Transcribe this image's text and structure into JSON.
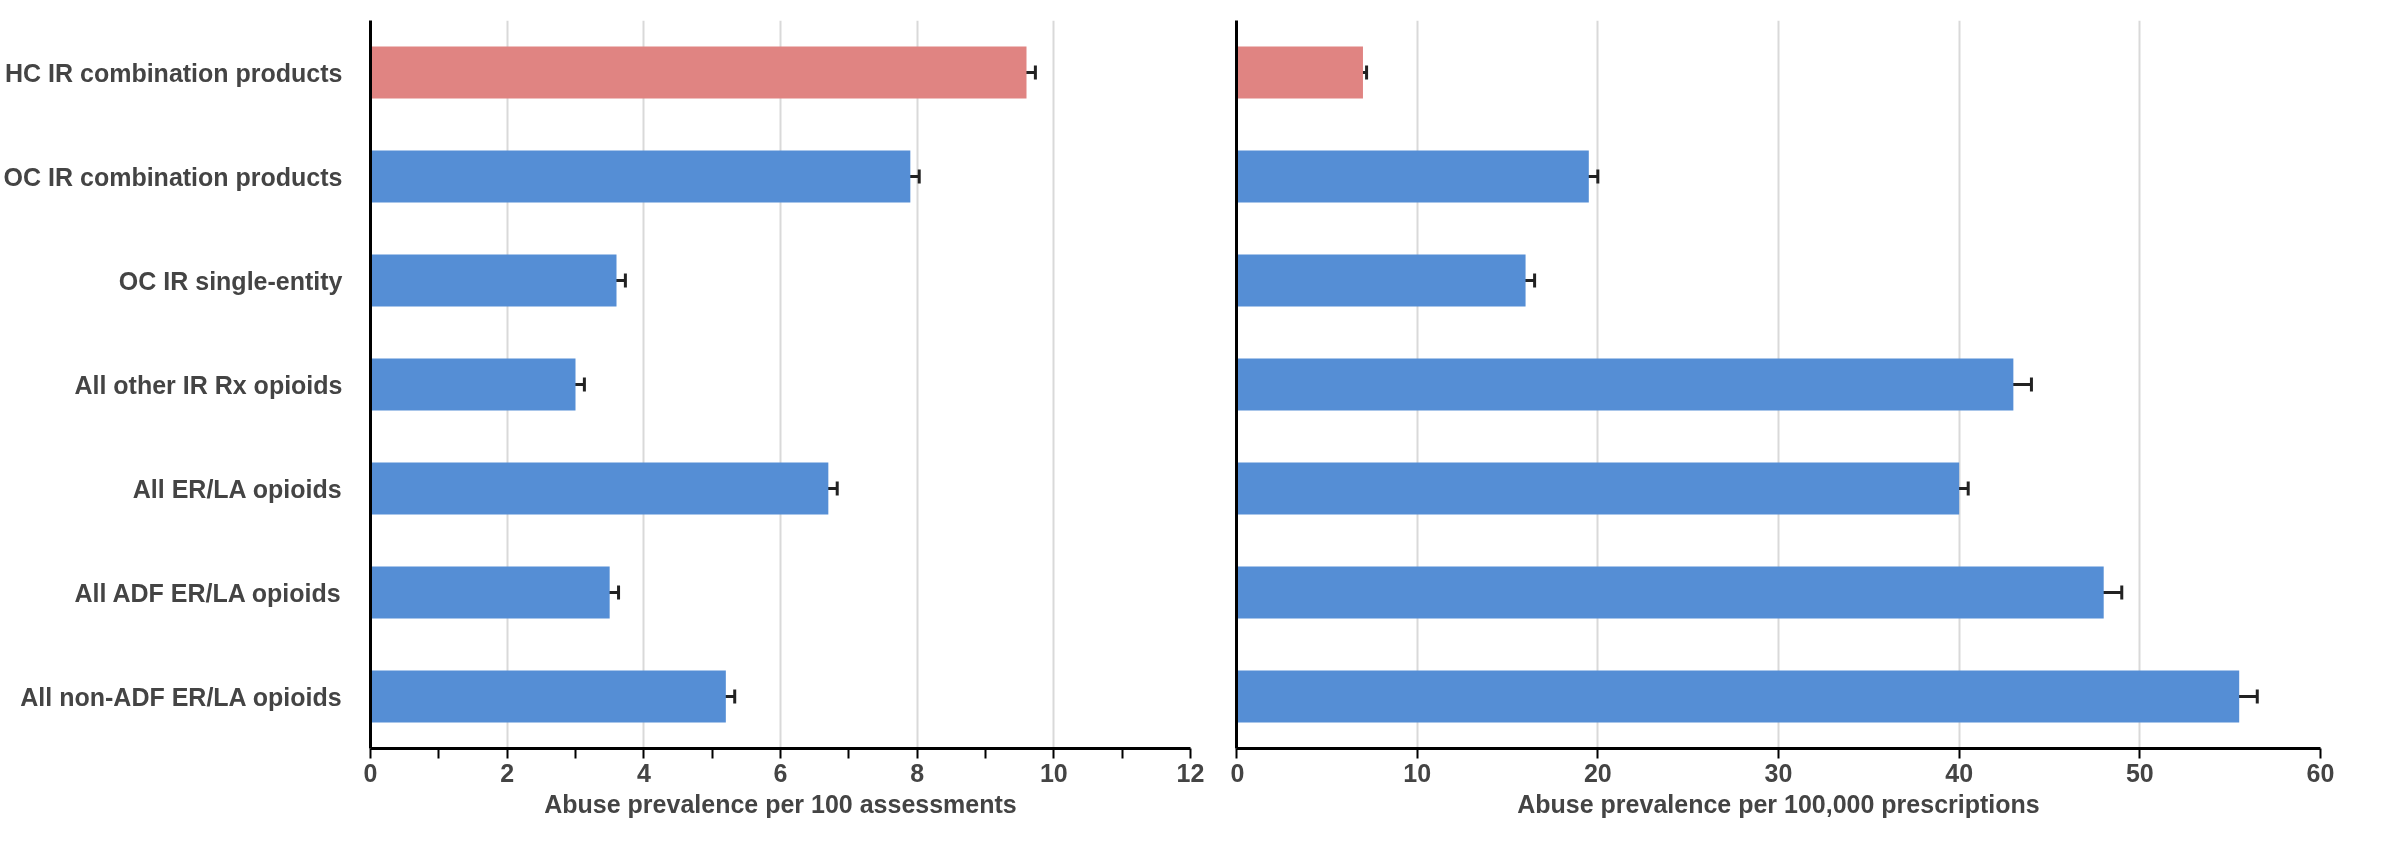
{
  "chart_data": [
    {
      "type": "bar",
      "orientation": "horizontal",
      "xlabel": "Abuse prevalence per 100 assessments",
      "categories": [
        "HC IR combination products",
        "OC IR combination products",
        "OC IR single-entity",
        "All other IR Rx opioids",
        "All ER/LA opioids",
        "All ADF ER/LA opioids",
        "All non-ADF ER/LA opioids"
      ],
      "values": [
        9.6,
        7.9,
        3.6,
        3.0,
        6.7,
        3.5,
        5.2
      ],
      "errors": [
        0.13,
        0.13,
        0.13,
        0.13,
        0.13,
        0.13,
        0.13
      ],
      "colors": [
        "#e08482",
        "#558ed5",
        "#558ed5",
        "#558ed5",
        "#558ed5",
        "#558ed5",
        "#558ed5"
      ],
      "xlim": [
        0,
        12
      ],
      "xticks": [
        0,
        {
          "value": 1,
          "label": null
        },
        2,
        {
          "value": 3,
          "label": null
        },
        4,
        {
          "value": 5,
          "label": null
        },
        6,
        {
          "value": 7,
          "label": null
        },
        8,
        {
          "value": 9,
          "label": null
        },
        10,
        {
          "value": 11,
          "label": null
        },
        12
      ],
      "grid": "x"
    },
    {
      "type": "bar",
      "orientation": "horizontal",
      "xlabel": "Abuse prevalence per 100,000 prescriptions",
      "categories": [
        null,
        null,
        null,
        null,
        null,
        null,
        null
      ],
      "values": [
        7.0,
        19.5,
        16.0,
        43.0,
        40.0,
        48.0,
        55.5
      ],
      "errors": [
        0.2,
        0.5,
        0.5,
        1.0,
        0.5,
        1.0,
        1.0
      ],
      "colors": [
        "#e08482",
        "#558ed5",
        "#558ed5",
        "#558ed5",
        "#558ed5",
        "#558ed5",
        "#558ed5"
      ],
      "xlim": [
        0,
        60
      ],
      "xticks": [
        0,
        10,
        20,
        30,
        40,
        50,
        60
      ],
      "grid": "x"
    }
  ]
}
